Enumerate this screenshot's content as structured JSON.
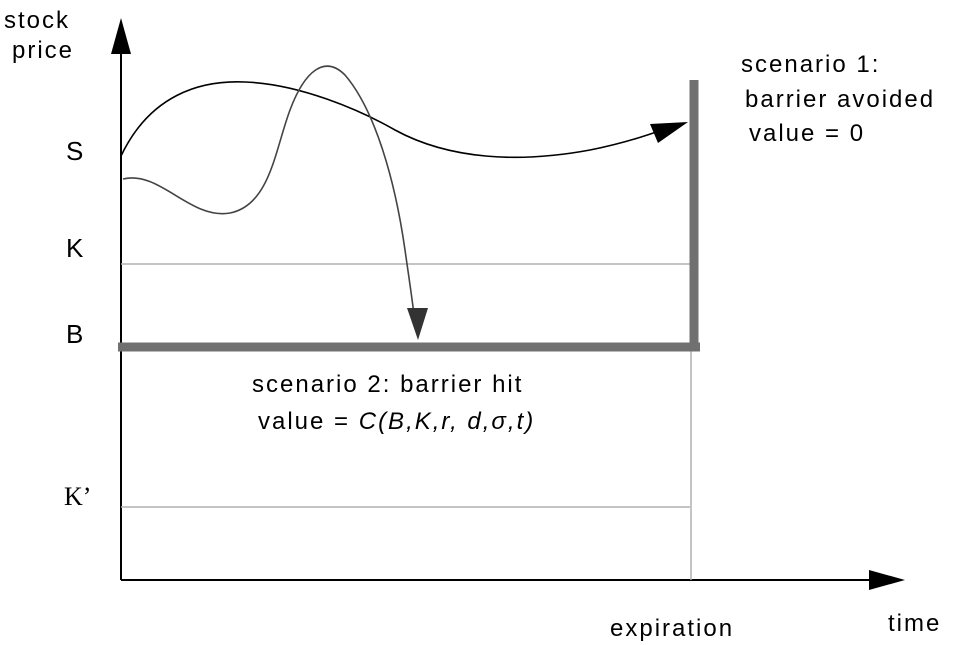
{
  "axes": {
    "y_label_line1": "stock",
    "y_label_line2": "price",
    "x_label": "time"
  },
  "levels": {
    "s": "S",
    "k": "K",
    "b": "B",
    "k_prime": "K’"
  },
  "expiration_label": "expiration",
  "scenario1": {
    "line1": "scenario 1:",
    "line2": "barrier avoided",
    "line3": "value = 0"
  },
  "scenario2": {
    "line1": "scenario 2: barrier hit",
    "value_prefix": "value = ",
    "value_formula": "C(B,K,r, d,σ,t)"
  },
  "colors": {
    "axis": "#000000",
    "barrier": "#707070",
    "guide_line": "#b0b0b0",
    "path1": "#000000",
    "path2": "#444444"
  }
}
